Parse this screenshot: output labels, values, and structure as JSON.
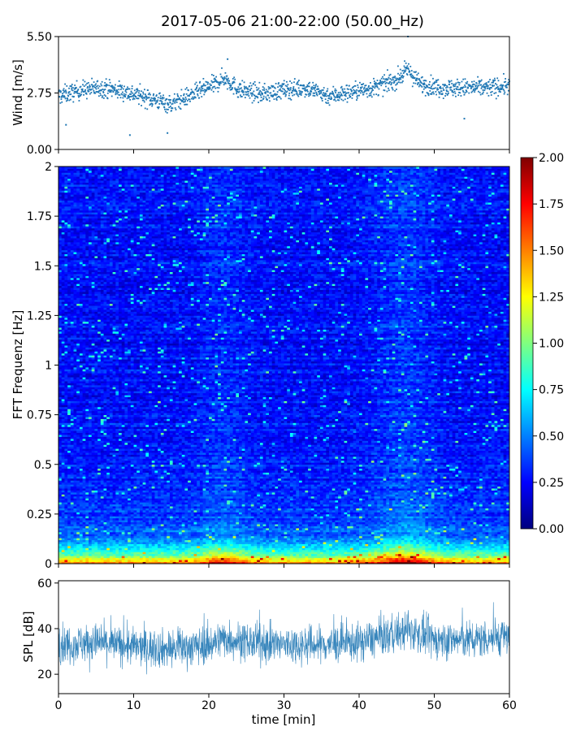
{
  "title": "2017-05-06 21:00-22:00 (50.00_Hz)",
  "colors": {
    "wind": "#1f77b4",
    "spl": "#1f77b4"
  },
  "chart_data": [
    {
      "type": "scatter",
      "name": "wind",
      "xlabel": "",
      "ylabel": "Wind [m/s]",
      "xlim": [
        0,
        60
      ],
      "ylim": [
        0,
        5.5
      ],
      "yticks": [
        "0.00",
        "2.75",
        "5.50"
      ],
      "y_tick_values": [
        0,
        2.75,
        5.5
      ],
      "trend": {
        "x": [
          0,
          3,
          6,
          9,
          12,
          15,
          18,
          21,
          22,
          24,
          27,
          30,
          33,
          36,
          39,
          42,
          45,
          46.5,
          48,
          51,
          54,
          57,
          60
        ],
        "y": [
          2.6,
          2.9,
          3.0,
          2.8,
          2.5,
          2.2,
          2.7,
          3.2,
          3.5,
          2.9,
          2.7,
          2.9,
          3.0,
          2.6,
          2.8,
          3.0,
          3.4,
          3.9,
          3.2,
          3.0,
          3.0,
          3.0,
          3.1
        ]
      },
      "outliers": [
        [
          1,
          1.2
        ],
        [
          9.5,
          0.7
        ],
        [
          14.5,
          0.8
        ],
        [
          22.5,
          4.4
        ],
        [
          46.5,
          5.5
        ],
        [
          54,
          1.5
        ]
      ]
    },
    {
      "type": "heatmap",
      "name": "spectrogram",
      "xlabel": "",
      "ylabel": "FFT Frequenz [Hz]",
      "xlim": [
        0,
        60
      ],
      "ylim": [
        0,
        2
      ],
      "yticks": [
        "0",
        "0.25",
        "0.5",
        "0.75",
        "1",
        "1.25",
        "1.5",
        "1.75",
        "2"
      ],
      "y_tick_values": [
        0,
        0.25,
        0.5,
        0.75,
        1,
        1.25,
        1.5,
        1.75,
        2
      ],
      "colormap": "jet",
      "colorbar": {
        "min": 0,
        "max": 2,
        "ticks": [
          "0.00",
          "0.25",
          "0.50",
          "0.75",
          "1.00",
          "1.25",
          "1.50",
          "1.75",
          "2.00"
        ],
        "tick_values": [
          0,
          0.25,
          0.5,
          0.75,
          1,
          1.25,
          1.5,
          1.75,
          2
        ]
      }
    },
    {
      "type": "line",
      "name": "spl",
      "xlabel": "time [min]",
      "ylabel": "SPL [dB]",
      "xlim": [
        0,
        60
      ],
      "ylim": [
        11.5,
        61
      ],
      "xticks": [
        "0",
        "10",
        "20",
        "30",
        "40",
        "50",
        "60"
      ],
      "x_tick_values": [
        0,
        10,
        20,
        30,
        40,
        50,
        60
      ],
      "yticks": [
        "20",
        "40",
        "60"
      ],
      "y_tick_values": [
        20,
        40,
        60
      ],
      "trend": {
        "x": [
          0,
          5,
          10,
          15,
          20,
          22,
          25,
          30,
          35,
          40,
          45,
          47,
          50,
          55,
          60
        ],
        "y": [
          33,
          34,
          32,
          31,
          33,
          36,
          34,
          33,
          33,
          34,
          38,
          39,
          35,
          35,
          37
        ]
      }
    }
  ]
}
